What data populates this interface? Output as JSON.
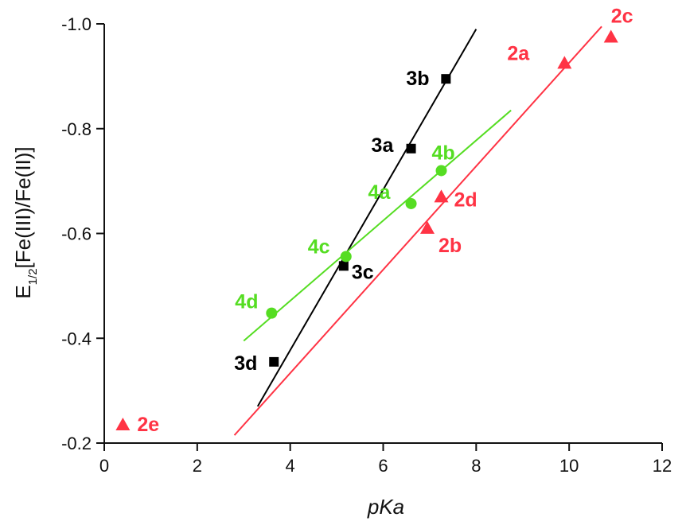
{
  "chart_data": {
    "type": "scatter",
    "title": "",
    "xlabel": "pKa",
    "ylabel": {
      "prefix": "E",
      "subscript": "1/2",
      "suffix": "[Fe(III)/Fe(II)]"
    },
    "xlim": [
      0,
      12
    ],
    "ylim": [
      -0.2,
      -1.0
    ],
    "x_ticks": [
      {
        "value": 0,
        "label": "0"
      },
      {
        "value": 2,
        "label": "2"
      },
      {
        "value": 4,
        "label": "4"
      },
      {
        "value": 6,
        "label": "6"
      },
      {
        "value": 8,
        "label": "8"
      },
      {
        "value": 10,
        "label": "10"
      },
      {
        "value": 12,
        "label": "12"
      }
    ],
    "y_ticks": [
      {
        "value": -0.2,
        "label": "-0.2"
      },
      {
        "value": -0.4,
        "label": "-0.4"
      },
      {
        "value": -0.6,
        "label": "-0.6"
      },
      {
        "value": -0.8,
        "label": "-0.8"
      },
      {
        "value": -1.0,
        "label": "-1.0"
      }
    ],
    "grid": false,
    "series": [
      {
        "marker": "triangle",
        "color": "#ff3344",
        "points": [
          {
            "label": "2a",
            "x": 9.9,
            "y": -0.925,
            "label_dx": -72,
            "label_dy": -4
          },
          {
            "label": "2b",
            "x": 6.95,
            "y": -0.61,
            "label_dx": 14,
            "label_dy": 30
          },
          {
            "label": "2c",
            "x": 10.9,
            "y": -0.975,
            "label_dx": 0,
            "label_dy": -18
          },
          {
            "label": "2d",
            "x": 7.25,
            "y": -0.67,
            "label_dx": 16,
            "label_dy": 12
          },
          {
            "label": "2e",
            "x": 0.4,
            "y": -0.235,
            "label_dx": 18,
            "label_dy": 8
          }
        ],
        "fit": {
          "x1": 2.8,
          "y1": -0.215,
          "x2": 10.7,
          "y2": -0.995
        }
      },
      {
        "marker": "square",
        "color": "#000000",
        "points": [
          {
            "label": "3a",
            "x": 6.6,
            "y": -0.762,
            "label_dx": -50,
            "label_dy": 4
          },
          {
            "label": "3b",
            "x": 7.35,
            "y": -0.895,
            "label_dx": -50,
            "label_dy": 8
          },
          {
            "label": "3c",
            "x": 5.15,
            "y": -0.538,
            "label_dx": 10,
            "label_dy": 16
          },
          {
            "label": "3d",
            "x": 3.65,
            "y": -0.355,
            "label_dx": -50,
            "label_dy": 10
          }
        ],
        "fit": {
          "x1": 3.3,
          "y1": -0.27,
          "x2": 8.0,
          "y2": -0.99
        }
      },
      {
        "marker": "circle",
        "color": "#55dd22",
        "points": [
          {
            "label": "4a",
            "x": 6.6,
            "y": -0.657,
            "label_dx": -54,
            "label_dy": -6
          },
          {
            "label": "4b",
            "x": 7.25,
            "y": -0.72,
            "label_dx": -12,
            "label_dy": -14
          },
          {
            "label": "4c",
            "x": 5.2,
            "y": -0.556,
            "label_dx": -48,
            "label_dy": -4
          },
          {
            "label": "4d",
            "x": 3.6,
            "y": -0.448,
            "label_dx": -46,
            "label_dy": -6
          }
        ],
        "fit": {
          "x1": 3.0,
          "y1": -0.395,
          "x2": 8.75,
          "y2": -0.835
        }
      }
    ]
  }
}
